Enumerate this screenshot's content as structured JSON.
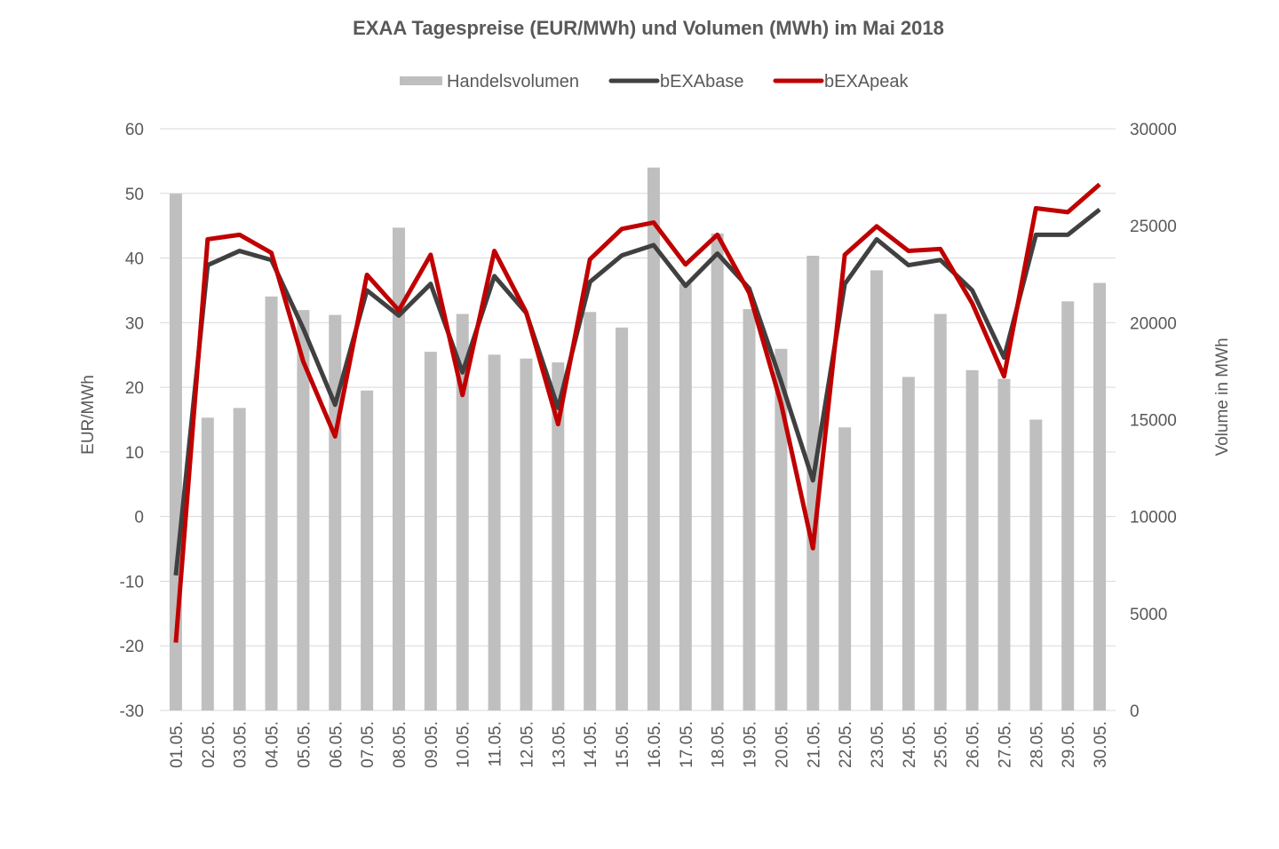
{
  "chart_data": {
    "type": "bar+line",
    "title": "EXAA Tagespreise (EUR/MWh) und Volumen (MWh) im Mai 2018",
    "ylabel": "EUR/MWh",
    "y2label": "Volume in MWh",
    "ylim": [
      -30,
      60
    ],
    "yticks": [
      60,
      50,
      40,
      30,
      20,
      10,
      0,
      -10,
      -20,
      -30
    ],
    "y2lim": [
      0,
      30000
    ],
    "y2ticks": [
      30000,
      25000,
      20000,
      15000,
      10000,
      5000,
      0
    ],
    "grid": true,
    "legend_position": "top-center",
    "categories": [
      "01.05.",
      "02.05.",
      "03.05.",
      "04.05.",
      "05.05.",
      "06.05.",
      "07.05.",
      "08.05.",
      "09.05.",
      "10.05.",
      "11.05.",
      "12.05.",
      "13.05.",
      "14.05.",
      "15.05.",
      "16.05.",
      "17.05.",
      "18.05.",
      "19.05.",
      "20.05.",
      "21.05.",
      "22.05.",
      "23.05.",
      "24.05.",
      "25.05.",
      "26.05.",
      "27.05.",
      "28.05.",
      "29.05.",
      "30.05."
    ],
    "series": [
      {
        "name": "Handelsvolumen",
        "type": "bar",
        "axis": "right",
        "color": "#bfbfbf",
        "values": [
          26650,
          15100,
          15600,
          21350,
          20650,
          20400,
          16500,
          24900,
          18500,
          20450,
          18350,
          18150,
          17950,
          20550,
          19750,
          28000,
          22000,
          24600,
          20700,
          18650,
          23450,
          14600,
          22700,
          17200,
          20450,
          17550,
          17100,
          15000,
          21100,
          22050
        ]
      },
      {
        "name": "bEXAbase",
        "type": "line",
        "axis": "left",
        "color": "#404040",
        "values": [
          -9.1,
          38.9,
          41.1,
          39.7,
          29.1,
          17.3,
          35.0,
          31.1,
          36.0,
          22.3,
          37.2,
          31.5,
          16.8,
          36.3,
          40.4,
          42.0,
          35.7,
          40.7,
          35.3,
          20.9,
          5.6,
          36.0,
          42.9,
          38.9,
          39.7,
          35.0,
          24.6,
          43.6,
          43.6,
          47.5
        ]
      },
      {
        "name": "bEXApeak",
        "type": "line",
        "axis": "left",
        "color": "#c00000",
        "values": [
          -19.5,
          42.9,
          43.6,
          40.8,
          24.0,
          12.4,
          37.4,
          31.9,
          40.5,
          18.8,
          41.1,
          31.6,
          14.3,
          39.8,
          44.5,
          45.5,
          39.0,
          43.6,
          34.6,
          17.5,
          -4.9,
          40.5,
          44.9,
          41.1,
          41.4,
          33.0,
          21.7,
          47.7,
          47.1,
          51.4
        ]
      }
    ]
  }
}
